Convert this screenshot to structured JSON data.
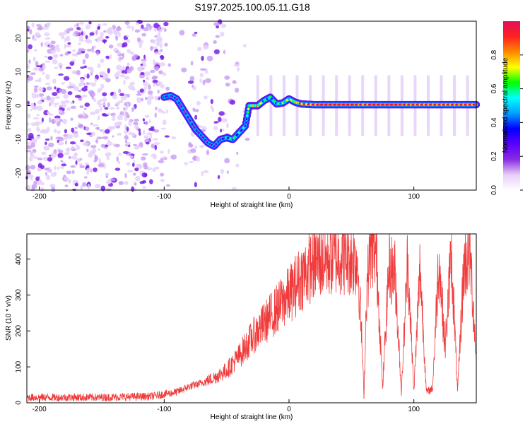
{
  "title": "S197.2025.100.05.11.G18",
  "chart_data": [
    {
      "type": "heatmap",
      "xlabel": "Height of straight line (km)",
      "ylabel": "Frequency (Hz)",
      "xlim": [
        -210,
        150
      ],
      "ylim": [
        -25,
        25
      ],
      "xticks": [
        -200,
        -100,
        0,
        100
      ],
      "yticks": [
        -20,
        -10,
        0,
        10,
        20
      ],
      "colorbar": {
        "label": "Normalized spectral amplitude",
        "range": [
          0,
          1
        ],
        "ticks": [
          0.0,
          0.2,
          0.4,
          0.6,
          0.8
        ],
        "colors": [
          "#ffffff",
          "#e8cdf8",
          "#8a2be2",
          "#5a00ff",
          "#0000ff",
          "#00a0ff",
          "#00ffff",
          "#00ff00",
          "#ffff00",
          "#ff8800",
          "#ff2020",
          "#e0105a"
        ]
      },
      "ridge": {
        "x": [
          -100,
          -95,
          -90,
          -85,
          -80,
          -75,
          -70,
          -65,
          -60,
          -55,
          -50,
          -45,
          -40,
          -35,
          -32,
          -25,
          -20,
          -15,
          -10,
          -5,
          0,
          5,
          10,
          20,
          40,
          60,
          80,
          100,
          120,
          150
        ],
        "y": [
          2.5,
          3.0,
          2.0,
          -1.0,
          -4.0,
          -7.0,
          -9.0,
          -11.0,
          -12.0,
          -10.0,
          -9.5,
          -10.0,
          -8.0,
          -6.0,
          0.0,
          0.0,
          1.5,
          2.5,
          0.5,
          0.8,
          2.0,
          1.0,
          0.5,
          0.3,
          0.3,
          0.3,
          0.3,
          0.3,
          0.3,
          0.3
        ]
      },
      "ridge_amplitude": [
        0.3,
        0.35,
        0.3,
        0.3,
        0.3,
        0.3,
        0.3,
        0.3,
        0.3,
        0.3,
        0.45,
        0.55,
        0.4,
        0.4,
        0.6,
        0.75,
        0.5,
        0.5,
        0.5,
        0.55,
        0.6,
        0.7,
        0.85,
        0.9,
        0.95,
        0.9,
        0.95,
        0.9,
        0.9,
        0.9
      ]
    },
    {
      "type": "line",
      "xlabel": "Height of straight line (km)",
      "ylabel": "SNR (10 * v/v)",
      "xlim": [
        -210,
        150
      ],
      "ylim": [
        0,
        470
      ],
      "xticks": [
        -200,
        -100,
        0,
        100
      ],
      "yticks": [
        0,
        100,
        200,
        300,
        400
      ],
      "color": "#f03c3c",
      "envelope": {
        "x": [
          -210,
          -150,
          -110,
          -90,
          -80,
          -70,
          -60,
          -50,
          -40,
          -30,
          -20,
          -10,
          0,
          10,
          20,
          30,
          40,
          50,
          55,
          58,
          60,
          62,
          65,
          70,
          75,
          80,
          85,
          90,
          95,
          100,
          105,
          110,
          115,
          120,
          125,
          130,
          135,
          140,
          145,
          150
        ],
        "y": [
          15,
          15,
          18,
          30,
          45,
          55,
          70,
          90,
          130,
          180,
          220,
          260,
          300,
          350,
          390,
          400,
          410,
          405,
          395,
          200,
          20,
          300,
          430,
          420,
          40,
          380,
          360,
          30,
          400,
          30,
          380,
          30,
          40,
          410,
          150,
          420,
          30,
          380,
          420,
          120
        ]
      }
    }
  ]
}
